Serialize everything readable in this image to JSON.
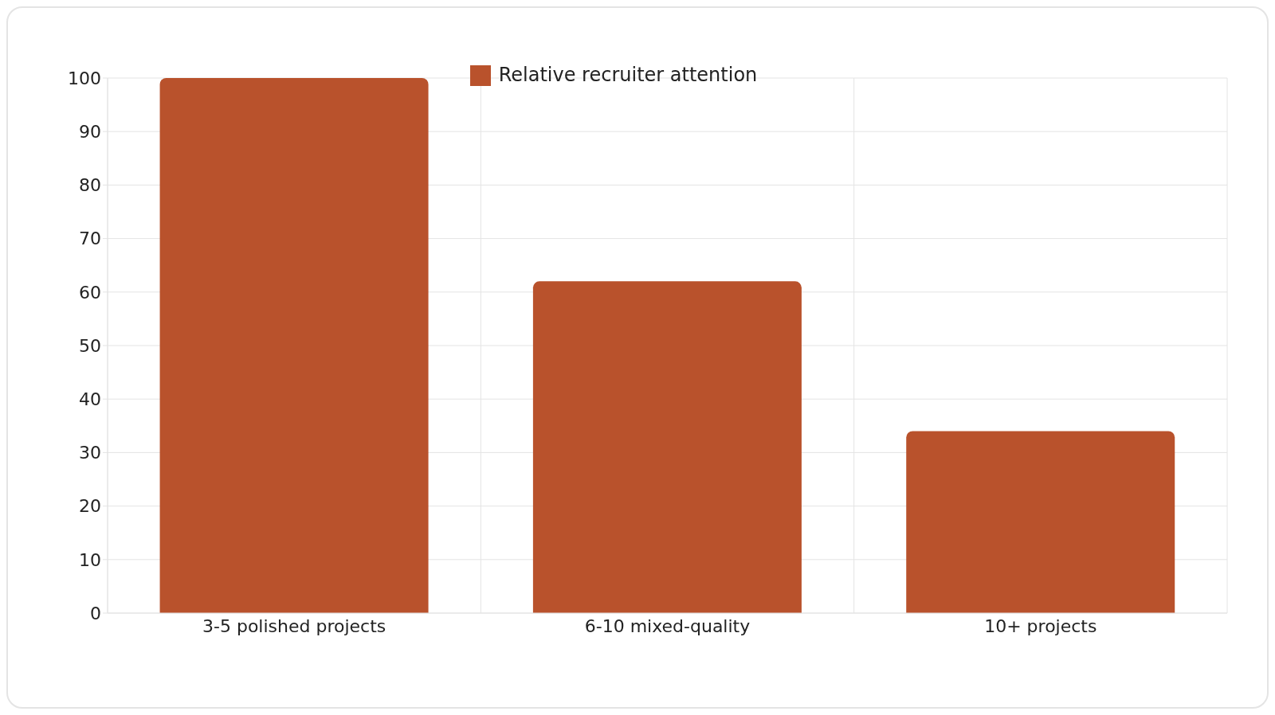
{
  "chart_data": {
    "type": "bar",
    "categories": [
      "3-5 polished projects",
      "6-10 mixed-quality",
      "10+ projects"
    ],
    "series": [
      {
        "name": "Relative recruiter attention",
        "color": "#b9522c",
        "values": [
          100,
          62,
          34
        ]
      }
    ],
    "ylim": [
      0,
      100
    ],
    "yticks": [
      0,
      10,
      20,
      30,
      40,
      50,
      60,
      70,
      80,
      90,
      100
    ],
    "grid": true,
    "legend": "top"
  }
}
